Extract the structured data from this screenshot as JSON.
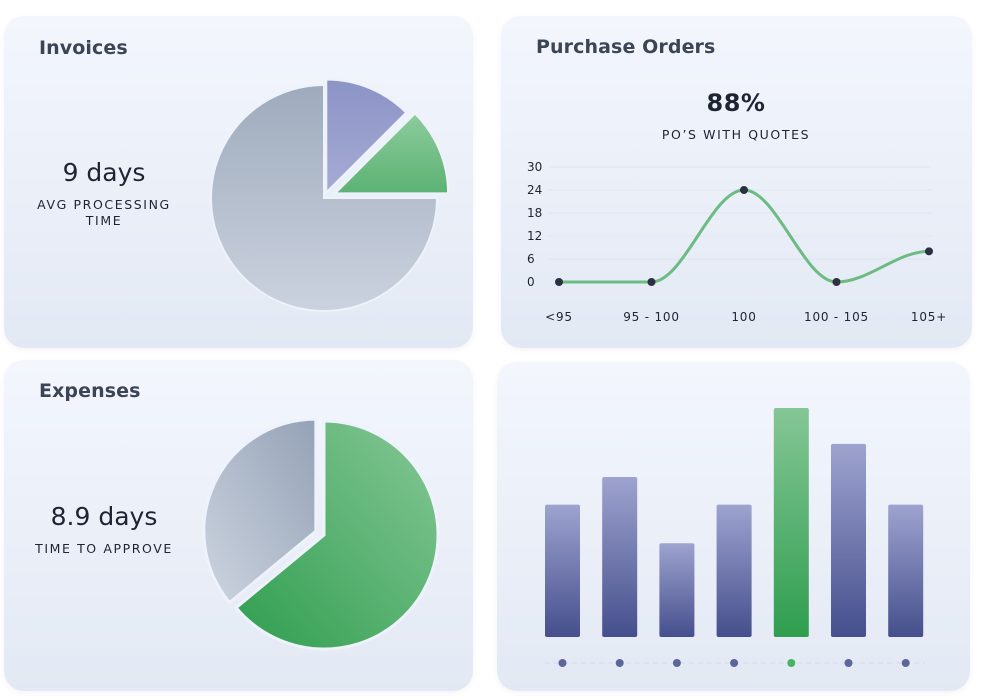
{
  "colors": {
    "green_light": "#8bc79a",
    "green_dark": "#2f9e4f",
    "purple_light": "#9ea3cf",
    "purple_dark": "#454f8c",
    "gray_light": "#c9d0dd",
    "gray_dark": "#9eabbc",
    "line": "#6bbb82",
    "point": "#2b3142"
  },
  "invoices": {
    "title": "Invoices",
    "value": "9 days",
    "label": "AVG PROCESSING TIME"
  },
  "purchase_orders": {
    "title": "Purchase Orders",
    "value": "88%",
    "label": "PO’S WITH QUOTES"
  },
  "expenses": {
    "title": "Expenses",
    "value": "8.9 days",
    "label": "TIME TO APPROVE"
  },
  "chart_data": [
    {
      "type": "pie",
      "title": "",
      "slices": [
        {
          "value": 75,
          "color": "gray"
        },
        {
          "value": 12.5,
          "color": "purple"
        },
        {
          "value": 12.5,
          "color": "green"
        }
      ]
    },
    {
      "type": "line",
      "title": "",
      "categories": [
        "<95",
        "95 - 100",
        "100",
        "100 - 105",
        "105+"
      ],
      "values": [
        0,
        0,
        24,
        0,
        8
      ],
      "yticks": [
        0,
        6,
        12,
        18,
        24,
        30
      ],
      "ylim": [
        0,
        30
      ],
      "grid": true
    },
    {
      "type": "pie",
      "title": "",
      "slices": [
        {
          "value": 64,
          "color": "green"
        },
        {
          "value": 36,
          "color": "gray"
        }
      ]
    },
    {
      "type": "bar",
      "title": "",
      "values": [
        48,
        58,
        34,
        48,
        83,
        70,
        48
      ],
      "highlight_index": 4,
      "ylim": [
        0,
        83
      ]
    }
  ]
}
